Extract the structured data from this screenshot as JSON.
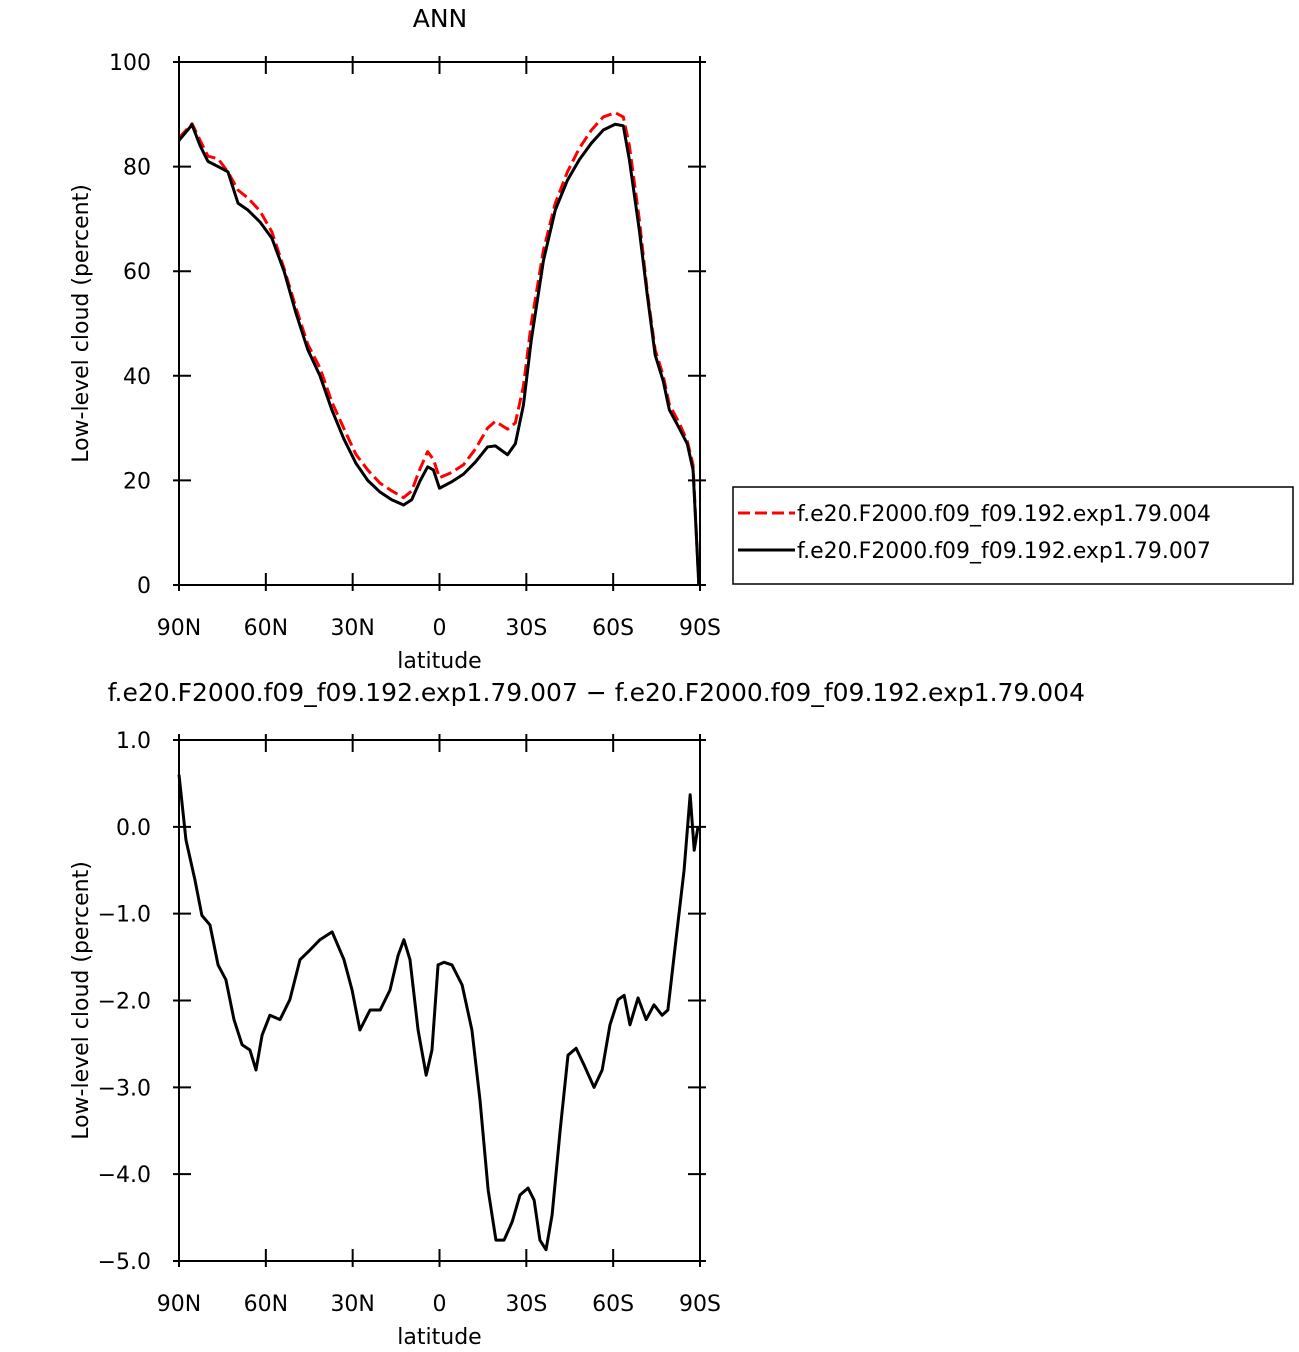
{
  "chart_data": [
    {
      "type": "line",
      "title": "ANN",
      "xlabel": "latitude",
      "ylabel": "Low-level cloud (percent)",
      "x": [
        90,
        85.5,
        82.7,
        80,
        76.5,
        73.1,
        69.6,
        66.2,
        62,
        57.9,
        53.7,
        49.6,
        45.5,
        41.3,
        37.2,
        33.1,
        28.9,
        24.8,
        20.6,
        16.5,
        12.4,
        9.6,
        6.9,
        4.1,
        2.1,
        0,
        -4.1,
        -8.3,
        -12.4,
        -16.6,
        -19.3,
        -23.5,
        -26.2,
        -29,
        -31.7,
        -35.9,
        -40,
        -44.2,
        -48.3,
        -52.5,
        -56.6,
        -60.7,
        -63.5,
        -65.6,
        -69,
        -71.8,
        -74.5,
        -77.3,
        -79.4,
        -82.8,
        -85.6,
        -87.6,
        -89.6
      ],
      "series": [
        {
          "name": "f.e20.F2000.f09_f09.192.exp1.79.004",
          "color": "#ff0000",
          "line_style": "dashed",
          "values": [
            85.5,
            88.2,
            85,
            82,
            81.5,
            79,
            75.5,
            74,
            71.5,
            67.5,
            60.5,
            53,
            46,
            41.5,
            35,
            30,
            25,
            22,
            19.5,
            18,
            16.7,
            18,
            22,
            25.5,
            24,
            20.5,
            21.5,
            23,
            26,
            30,
            31.3,
            29.8,
            31,
            38,
            50,
            64,
            73,
            79,
            83.5,
            87,
            89.5,
            90.3,
            89.5,
            84,
            70,
            56,
            45,
            40,
            34.5,
            31,
            27.5,
            23,
            0
          ]
        },
        {
          "name": "f.e20.F2000.f09_f09.192.exp1.79.007",
          "color": "#000000",
          "line_style": "solid",
          "values": [
            85,
            88,
            84,
            81,
            80,
            79,
            73,
            71.7,
            69.4,
            66.3,
            60,
            52,
            45,
            40,
            33.5,
            28,
            23.3,
            20,
            17.8,
            16.3,
            15.3,
            16.3,
            19.7,
            22.6,
            22,
            18.5,
            19.7,
            21.2,
            23.5,
            26.4,
            26.6,
            24.9,
            27,
            34.4,
            46.8,
            62,
            71.7,
            77.4,
            81.3,
            84.5,
            87,
            88.1,
            87.8,
            81.3,
            68,
            55.4,
            44,
            39,
            33.5,
            30,
            27,
            22,
            0
          ]
        }
      ],
      "xlim": [
        90,
        -90
      ],
      "xticks": [
        {
          "value": 90,
          "label": "90N"
        },
        {
          "value": 60,
          "label": "60N"
        },
        {
          "value": 30,
          "label": "30N"
        },
        0,
        {
          "value": -30,
          "label": "30S"
        },
        {
          "value": -60,
          "label": "60S"
        },
        {
          "value": -90,
          "label": "90S"
        }
      ],
      "ylim": [
        0,
        100
      ],
      "yticks": [
        0,
        20,
        40,
        60,
        80,
        100
      ],
      "legend": "right"
    },
    {
      "type": "line",
      "title": "f.e20.F2000.f09_f09.192.exp1.79.007 − f.e20.F2000.f09_f09.192.exp1.79.004",
      "xlabel": "latitude",
      "ylabel": "Low-level cloud (percent)",
      "x": [
        90,
        87.6,
        84.5,
        82.1,
        79.3,
        76.5,
        73.8,
        71,
        68.2,
        65.5,
        63.4,
        61.3,
        58.6,
        55.1,
        51.7,
        48.2,
        44.8,
        41.3,
        37.1,
        33,
        30.2,
        27.5,
        24,
        20.5,
        17.1,
        14.3,
        12.3,
        10.2,
        7.4,
        4.6,
        2.6,
        0.5,
        -1.6,
        -4.3,
        -7.8,
        -11.2,
        -14,
        -16.8,
        -19.5,
        -22.3,
        -25.1,
        -27.8,
        -30.6,
        -32.7,
        -34.7,
        -36.8,
        -38.9,
        -41.7,
        -44.4,
        -47.2,
        -49.9,
        -53.4,
        -56.2,
        -58.9,
        -61.7,
        -63.8,
        -65.8,
        -68.6,
        -71.4,
        -74.1,
        -76.9,
        -78.9,
        -81.7,
        -84.5,
        -86.6,
        -88,
        -89.3
      ],
      "series": [
        {
          "color": "#000000",
          "line_style": "solid",
          "values": [
            0.6,
            -0.15,
            -0.61,
            -1.02,
            -1.13,
            -1.59,
            -1.76,
            -2.22,
            -2.51,
            -2.57,
            -2.8,
            -2.4,
            -2.17,
            -2.22,
            -1.99,
            -1.53,
            -1.42,
            -1.3,
            -1.21,
            -1.53,
            -1.88,
            -2.34,
            -2.11,
            -2.11,
            -1.88,
            -1.48,
            -1.3,
            -1.53,
            -2.34,
            -2.86,
            -2.57,
            -1.59,
            -1.56,
            -1.59,
            -1.82,
            -2.34,
            -3.15,
            -4.18,
            -4.76,
            -4.76,
            -4.55,
            -4.24,
            -4.16,
            -4.3,
            -4.76,
            -4.87,
            -4.47,
            -3.49,
            -2.63,
            -2.55,
            -2.74,
            -3.0,
            -2.8,
            -2.28,
            -1.99,
            -1.94,
            -2.28,
            -1.97,
            -2.22,
            -2.05,
            -2.17,
            -2.11,
            -1.3,
            -0.5,
            0.37,
            -0.27,
            0.0
          ]
        }
      ],
      "xlim": [
        90,
        -90
      ],
      "xticks": [
        {
          "value": 90,
          "label": "90N"
        },
        {
          "value": 60,
          "label": "60N"
        },
        {
          "value": 30,
          "label": "30N"
        },
        0,
        {
          "value": -30,
          "label": "30S"
        },
        {
          "value": -60,
          "label": "60S"
        },
        {
          "value": -90,
          "label": "90S"
        }
      ],
      "ylim": [
        -5,
        1
      ],
      "yticks": [
        {
          "value": 1,
          "label": "1.0"
        },
        {
          "value": 0,
          "label": "0.0"
        },
        {
          "value": -1,
          "label": "−1.0"
        },
        {
          "value": -2,
          "label": "−2.0"
        },
        {
          "value": -3,
          "label": "−3.0"
        },
        {
          "value": -4,
          "label": "−4.0"
        },
        {
          "value": -5,
          "label": "−5.0"
        }
      ]
    }
  ]
}
